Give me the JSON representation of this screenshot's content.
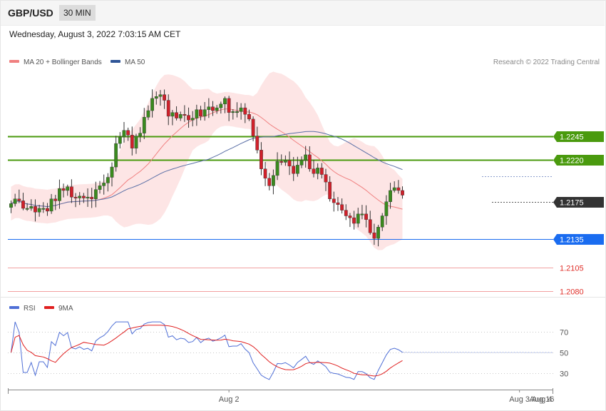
{
  "header": {
    "symbol": "GBP/USD",
    "interval": "30 MIN",
    "datetime": "Wednesday, August 3, 2022 7:03:15 AM CET"
  },
  "chart_data": [
    {
      "type": "candlestick",
      "legend": [
        {
          "name": "MA 20 + Bollinger Bands",
          "color": "#f08080"
        },
        {
          "name": "MA 50",
          "color": "#2f5597"
        }
      ],
      "credit": "Research © 2022 Trading Central",
      "ylim": [
        1.207,
        1.231
      ],
      "grid": false,
      "levels": [
        {
          "value": 1.2245,
          "label": "1.2245",
          "color": "#4a9a0e",
          "style": "box"
        },
        {
          "value": 1.222,
          "label": "1.2220",
          "color": "#4a9a0e",
          "style": "box"
        },
        {
          "value": 1.2175,
          "label": "1.2175",
          "color": "#333333",
          "style": "box"
        },
        {
          "value": 1.2135,
          "label": "1.2135",
          "color": "#1a6cf0",
          "style": "box"
        },
        {
          "value": 1.2105,
          "label": "1.2105",
          "color": "#e0302a",
          "style": "text"
        },
        {
          "value": 1.208,
          "label": "1.2080",
          "color": "#e0302a",
          "style": "text"
        }
      ],
      "arrow": {
        "from": [
          147,
          1.2175
        ],
        "to": [
          161,
          1.2245
        ]
      },
      "close": [
        1.2173,
        1.2178,
        1.2176,
        1.2168,
        1.2168,
        1.217,
        1.2164,
        1.2168,
        1.2168,
        1.2165,
        1.2178,
        1.2176,
        1.2189,
        1.2187,
        1.2191,
        1.218,
        1.2179,
        1.2181,
        1.2179,
        1.218,
        1.2178,
        1.2188,
        1.2192,
        1.2195,
        1.2201,
        1.2212,
        1.2237,
        1.2244,
        1.2251,
        1.2246,
        1.2232,
        1.2245,
        1.2248,
        1.2265,
        1.2272,
        1.2285,
        1.2287,
        1.2289,
        1.2283,
        1.2266,
        1.227,
        1.2264,
        1.2268,
        1.2267,
        1.2262,
        1.2264,
        1.2273,
        1.2266,
        1.2273,
        1.2276,
        1.2272,
        1.2275,
        1.2279,
        1.2285,
        1.227,
        1.2271,
        1.2271,
        1.2275,
        1.2268,
        1.2263,
        1.2245,
        1.223,
        1.221,
        1.22,
        1.2192,
        1.2203,
        1.2218,
        1.2217,
        1.2219,
        1.2213,
        1.2205,
        1.2214,
        1.2219,
        1.2225,
        1.221,
        1.2205,
        1.2211,
        1.2204,
        1.2196,
        1.2178,
        1.2174,
        1.2172,
        1.2166,
        1.216,
        1.2158,
        1.2152,
        1.2162,
        1.2162,
        1.2156,
        1.2142,
        1.2136,
        1.2148,
        1.216,
        1.2175,
        1.2187,
        1.219,
        1.2187,
        1.2182
      ],
      "rsi": {
        "ticks": [
          70,
          50,
          30
        ],
        "ylim": [
          15,
          85
        ],
        "legend": [
          {
            "name": "RSI",
            "color": "#4f6fd6"
          },
          {
            "name": "9MA",
            "color": "#e02020"
          }
        ]
      },
      "x_ticks": [
        {
          "label": "Aug 2",
          "index": 54
        },
        {
          "label": "Aug 3",
          "index": 126
        },
        {
          "label": "Aug 4",
          "index": 149
        },
        {
          "label": "Aug 16",
          "index": 170
        }
      ]
    }
  ]
}
